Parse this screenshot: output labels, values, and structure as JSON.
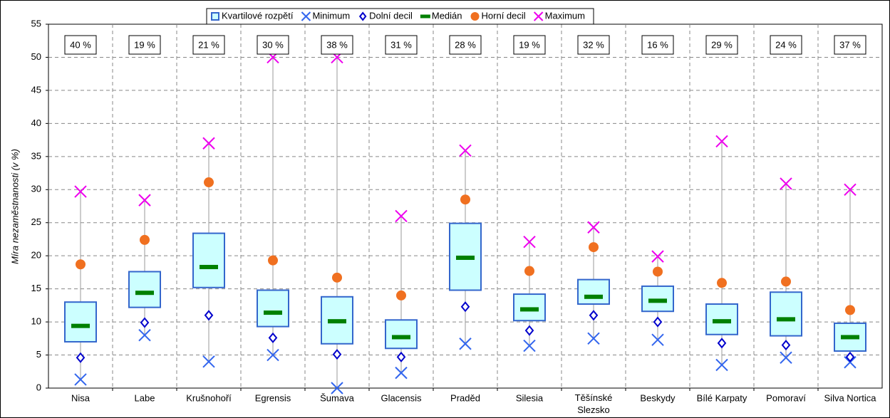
{
  "chart_data": {
    "type": "box",
    "y_label": "Míra nezaměstnanosti (v %)",
    "categories": [
      "Nisa",
      "Labe",
      "Krušnohoří",
      "Egrensis",
      "Šumava",
      "Glacensis",
      "Praděd",
      "Silesia",
      "Těšínské Slezsko",
      "Beskydy",
      "Bílé Karpaty",
      "Pomoraví",
      "Silva Nortica"
    ],
    "annotations": [
      "40 %",
      "19 %",
      "21 %",
      "30 %",
      "38 %",
      "31 %",
      "28 %",
      "19 %",
      "32 %",
      "16 %",
      "29 %",
      "24 %",
      "37 %"
    ],
    "series": [
      {
        "name": "Kvartilové rozpětí",
        "color": "#3366cc",
        "fill": "#ccffff",
        "marker": "box",
        "low": [
          7,
          12.2,
          15.2,
          9.3,
          6.7,
          6,
          14.8,
          10.2,
          12.7,
          11.6,
          8.1,
          7.9,
          5.6
        ],
        "high": [
          13,
          17.6,
          23.4,
          14.8,
          13.8,
          10.3,
          24.9,
          14.2,
          16.4,
          15.4,
          12.7,
          14.5,
          9.8
        ]
      },
      {
        "name": "Minimum",
        "color": "#3366ee",
        "marker": "x",
        "values": [
          1.3,
          8,
          4,
          5,
          0,
          2.3,
          6.7,
          6.4,
          7.5,
          7.3,
          3.5,
          4.6,
          3.9
        ]
      },
      {
        "name": "Dolní decil",
        "color": "#0000cc",
        "marker": "diamond",
        "values": [
          4.6,
          9.9,
          11,
          7.6,
          5.1,
          4.7,
          12.3,
          8.7,
          11,
          10,
          6.8,
          6.5,
          4.7
        ]
      },
      {
        "name": "Medián",
        "color": "#008000",
        "marker": "dash",
        "values": [
          9.4,
          14.4,
          18.3,
          11.4,
          10.1,
          7.7,
          19.7,
          11.9,
          13.8,
          13.2,
          10.1,
          10.4,
          7.7
        ]
      },
      {
        "name": "Horní decil",
        "color": "#f07020",
        "marker": "circle",
        "values": [
          18.7,
          22.4,
          31.1,
          19.3,
          16.7,
          14,
          28.5,
          17.7,
          21.3,
          17.6,
          15.9,
          16.1,
          11.8
        ]
      },
      {
        "name": "Maximum",
        "color": "#ee00ee",
        "marker": "x",
        "values": [
          29.7,
          28.4,
          37,
          50,
          50,
          26,
          35.9,
          22.1,
          24.3,
          19.9,
          37.3,
          30.9,
          30
        ]
      }
    ],
    "ylim": [
      0,
      55
    ],
    "yticks": [
      0,
      5,
      10,
      15,
      20,
      25,
      30,
      35,
      40,
      45,
      50,
      55
    ],
    "grid": true
  }
}
